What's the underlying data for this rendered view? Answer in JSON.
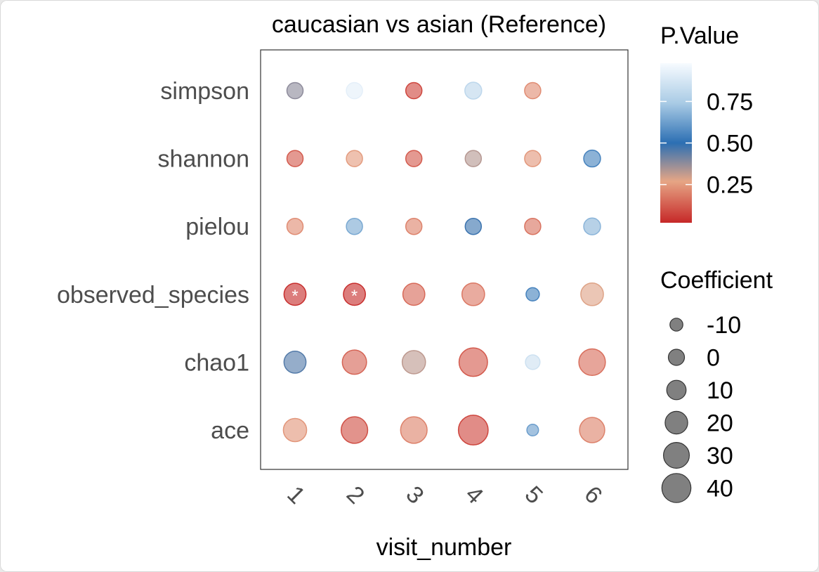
{
  "chart_data": {
    "type": "scatter",
    "title": "caucasian vs asian (Reference)",
    "xlabel": "visit_number",
    "ylabel": "",
    "x_categories": [
      "1",
      "2",
      "3",
      "4",
      "5",
      "6"
    ],
    "y_categories": [
      "simpson",
      "shannon",
      "pielou",
      "observed_species",
      "chao1",
      "ace"
    ],
    "color_legend": {
      "title": "P.Value",
      "ticks": [
        0.25,
        0.5,
        0.75
      ],
      "tick_labels": [
        "0.25",
        "0.50",
        "0.75"
      ],
      "range": [
        0.02,
        0.98
      ],
      "colors": {
        "low": "#c62828",
        "mid_low": "#e6a585",
        "mid": "#2c6fb3",
        "mid_high": "#a9cbe5",
        "high": "#f7fbff"
      }
    },
    "size_legend": {
      "title": "Coefficient",
      "values": [
        -10,
        0,
        10,
        20,
        30,
        40
      ],
      "labels": [
        "-10",
        "0",
        "10",
        "20",
        "30",
        "40"
      ]
    },
    "points": [
      {
        "x": "1",
        "y": "simpson",
        "p": 0.38,
        "coef": 0
      },
      {
        "x": "2",
        "y": "simpson",
        "p": 0.92,
        "coef": 0
      },
      {
        "x": "3",
        "y": "simpson",
        "p": 0.08,
        "coef": 0
      },
      {
        "x": "4",
        "y": "simpson",
        "p": 0.8,
        "coef": 2
      },
      {
        "x": "5",
        "y": "simpson",
        "p": 0.22,
        "coef": 0
      },
      {
        "x": "1",
        "y": "shannon",
        "p": 0.12,
        "coef": 0
      },
      {
        "x": "2",
        "y": "shannon",
        "p": 0.25,
        "coef": 0
      },
      {
        "x": "3",
        "y": "shannon",
        "p": 0.12,
        "coef": 0
      },
      {
        "x": "4",
        "y": "shannon",
        "p": 0.33,
        "coef": 0
      },
      {
        "x": "5",
        "y": "shannon",
        "p": 0.24,
        "coef": 0
      },
      {
        "x": "6",
        "y": "shannon",
        "p": 0.55,
        "coef": 2
      },
      {
        "x": "1",
        "y": "pielou",
        "p": 0.22,
        "coef": 0
      },
      {
        "x": "2",
        "y": "pielou",
        "p": 0.65,
        "coef": 0
      },
      {
        "x": "3",
        "y": "pielou",
        "p": 0.2,
        "coef": 0
      },
      {
        "x": "4",
        "y": "pielou",
        "p": 0.48,
        "coef": 0
      },
      {
        "x": "5",
        "y": "pielou",
        "p": 0.17,
        "coef": 0
      },
      {
        "x": "6",
        "y": "pielou",
        "p": 0.68,
        "coef": 2
      },
      {
        "x": "1",
        "y": "observed_species",
        "p": 0.03,
        "coef": 18,
        "label": "*"
      },
      {
        "x": "2",
        "y": "observed_species",
        "p": 0.03,
        "coef": 18,
        "label": "*"
      },
      {
        "x": "3",
        "y": "observed_species",
        "p": 0.15,
        "coef": 18
      },
      {
        "x": "4",
        "y": "observed_species",
        "p": 0.18,
        "coef": 20
      },
      {
        "x": "5",
        "y": "observed_species",
        "p": 0.55,
        "coef": -9
      },
      {
        "x": "6",
        "y": "observed_species",
        "p": 0.28,
        "coef": 20
      },
      {
        "x": "1",
        "y": "chao1",
        "p": 0.45,
        "coef": 18
      },
      {
        "x": "2",
        "y": "chao1",
        "p": 0.14,
        "coef": 25
      },
      {
        "x": "3",
        "y": "chao1",
        "p": 0.32,
        "coef": 22
      },
      {
        "x": "4",
        "y": "chao1",
        "p": 0.12,
        "coef": 38
      },
      {
        "x": "5",
        "y": "chao1",
        "p": 0.85,
        "coef": -5
      },
      {
        "x": "6",
        "y": "chao1",
        "p": 0.16,
        "coef": 32
      },
      {
        "x": "1",
        "y": "ace",
        "p": 0.24,
        "coef": 22
      },
      {
        "x": "2",
        "y": "ace",
        "p": 0.1,
        "coef": 32
      },
      {
        "x": "3",
        "y": "ace",
        "p": 0.2,
        "coef": 32
      },
      {
        "x": "4",
        "y": "ace",
        "p": 0.08,
        "coef": 42
      },
      {
        "x": "5",
        "y": "ace",
        "p": 0.62,
        "coef": -14
      },
      {
        "x": "6",
        "y": "ace",
        "p": 0.2,
        "coef": 28
      }
    ]
  }
}
